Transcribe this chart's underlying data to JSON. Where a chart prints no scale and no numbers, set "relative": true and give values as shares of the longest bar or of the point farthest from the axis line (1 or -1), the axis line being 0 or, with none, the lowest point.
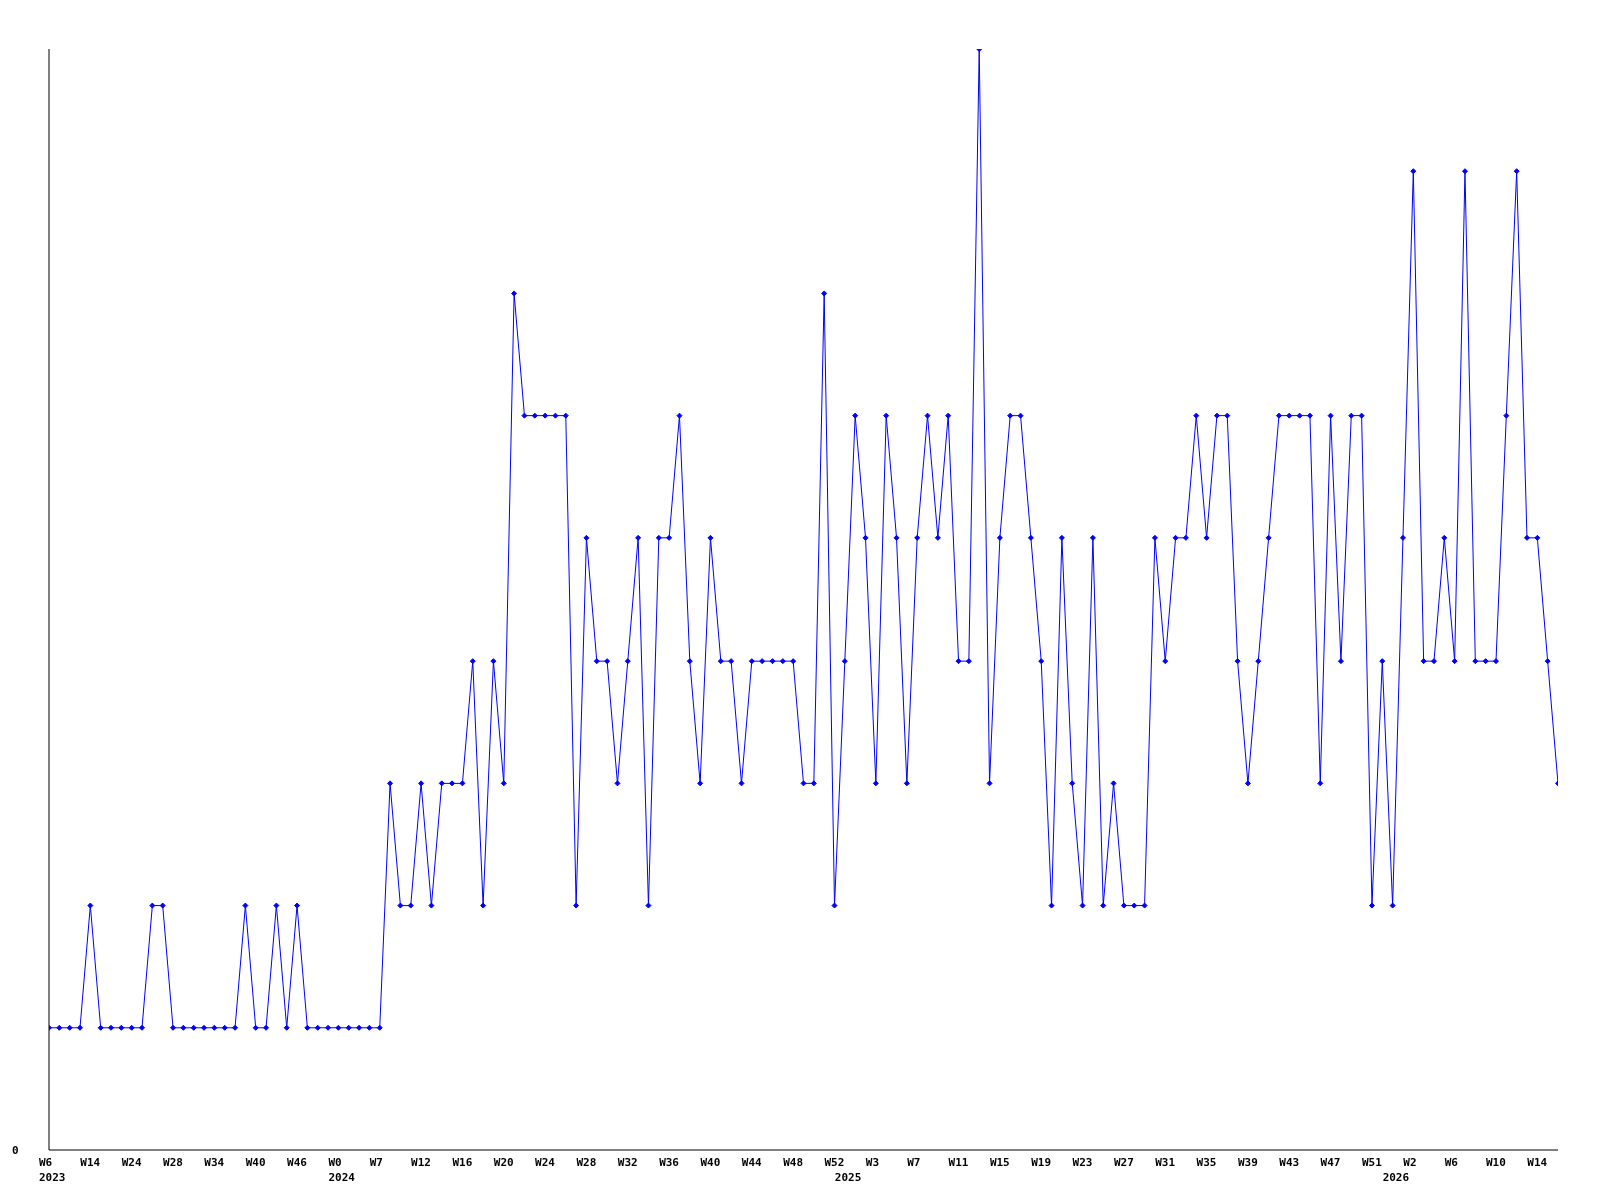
{
  "chart_data": {
    "type": "line",
    "relative": true,
    "color": "#0000ff",
    "marker": "diamond",
    "annotations": [
      "0"
    ],
    "categories": [
      "W6\n2023",
      null,
      null,
      null,
      "W14",
      null,
      null,
      null,
      "W24",
      null,
      null,
      null,
      "W28",
      null,
      null,
      null,
      "W34",
      null,
      null,
      null,
      "W40",
      null,
      null,
      null,
      "W46",
      null,
      null,
      null,
      "W0\n2024",
      null,
      null,
      null,
      "W7",
      null,
      null,
      null,
      "W12",
      null,
      null,
      null,
      "W16",
      null,
      null,
      null,
      "W20",
      null,
      null,
      null,
      "W24",
      null,
      null,
      null,
      "W28",
      null,
      null,
      null,
      "W32",
      null,
      null,
      null,
      "W36",
      null,
      null,
      null,
      "W40",
      null,
      null,
      null,
      "W44",
      null,
      null,
      null,
      "W48",
      null,
      null,
      null,
      "W52",
      "\n2025",
      null,
      null,
      "W3",
      null,
      null,
      null,
      "W7",
      null,
      null,
      null,
      "W11",
      null,
      null,
      null,
      "W15",
      null,
      null,
      null,
      "W19",
      null,
      null,
      null,
      "W23",
      null,
      null,
      null,
      "W27",
      null,
      null,
      null,
      "W31",
      null,
      null,
      null,
      "W35",
      null,
      null,
      null,
      "W39",
      null,
      null,
      null,
      "W43",
      null,
      null,
      null,
      "W47",
      null,
      null,
      null,
      "W51",
      null,
      "\n2026",
      null,
      "W2",
      null,
      null,
      null,
      "W6",
      null,
      null,
      null,
      "W10",
      null,
      null,
      null,
      "W14",
      null,
      null
    ],
    "values": [
      0.111,
      0.111,
      0.111,
      0.111,
      0.222,
      0.111,
      0.111,
      0.111,
      0.111,
      0.111,
      0.222,
      0.222,
      0.111,
      0.111,
      0.111,
      0.111,
      0.111,
      0.111,
      0.111,
      0.222,
      0.111,
      0.111,
      0.222,
      0.111,
      0.222,
      0.111,
      0.111,
      0.111,
      0.111,
      0.111,
      0.111,
      0.111,
      0.111,
      0.333,
      0.222,
      0.222,
      0.333,
      0.222,
      0.333,
      0.333,
      0.333,
      0.444,
      0.222,
      0.444,
      0.333,
      0.778,
      0.667,
      0.667,
      0.667,
      0.667,
      0.667,
      0.222,
      0.556,
      0.444,
      0.444,
      0.333,
      0.444,
      0.556,
      0.222,
      0.556,
      0.556,
      0.667,
      0.444,
      0.333,
      0.556,
      0.444,
      0.444,
      0.333,
      0.444,
      0.444,
      0.444,
      0.444,
      0.444,
      0.333,
      0.333,
      0.778,
      0.222,
      0.444,
      0.667,
      0.556,
      0.333,
      0.667,
      0.556,
      0.333,
      0.556,
      0.667,
      0.556,
      0.667,
      0.444,
      0.444,
      1,
      0.333,
      0.556,
      0.667,
      0.667,
      0.556,
      0.444,
      0.222,
      0.556,
      0.333,
      0.222,
      0.556,
      0.222,
      0.333,
      0.222,
      0.222,
      0.222,
      0.556,
      0.444,
      0.556,
      0.556,
      0.667,
      0.556,
      0.667,
      0.667,
      0.444,
      0.333,
      0.444,
      0.556,
      0.667,
      0.667,
      0.667,
      0.667,
      0.333,
      0.667,
      0.444,
      0.667,
      0.667,
      0.222,
      0.444,
      0.222,
      0.556,
      0.889,
      0.444,
      0.444,
      0.556,
      0.444,
      0.889,
      0.444,
      0.444,
      0.444,
      0.667,
      0.889,
      0.556,
      0.556,
      0.444,
      0.333
    ]
  }
}
